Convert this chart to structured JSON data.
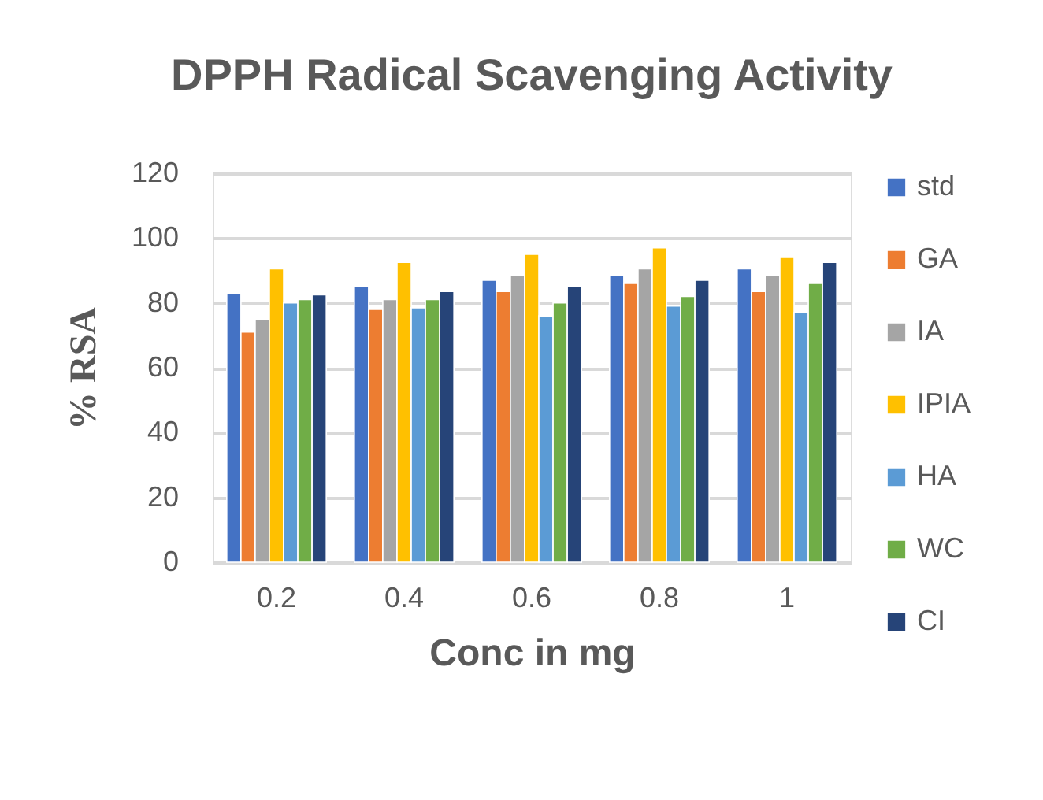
{
  "chart_data": {
    "type": "bar",
    "title": "DPPH Radical Scavenging Activity",
    "xlabel": "Conc in mg",
    "ylabel": "% RSA",
    "categories": [
      "0.2",
      "0.4",
      "0.6",
      "0.8",
      "1"
    ],
    "series": [
      {
        "name": "std",
        "color": "#4472c4",
        "values": [
          83,
          85,
          87,
          88.5,
          90.5
        ]
      },
      {
        "name": "GA",
        "color": "#ed7d31",
        "values": [
          71,
          78,
          83.5,
          86,
          83.5
        ]
      },
      {
        "name": "IA",
        "color": "#a5a5a5",
        "values": [
          75,
          81,
          88.5,
          90.5,
          88.5
        ]
      },
      {
        "name": "IPIA",
        "color": "#ffc000",
        "values": [
          90.5,
          92.5,
          95,
          97,
          94
        ]
      },
      {
        "name": "HA",
        "color": "#5b9bd5",
        "values": [
          80,
          78.5,
          76,
          79,
          77
        ]
      },
      {
        "name": "WC",
        "color": "#70ad47",
        "values": [
          81,
          81,
          80,
          82,
          86
        ]
      },
      {
        "name": "CI",
        "color": "#264478",
        "values": [
          82.5,
          83.5,
          85,
          87,
          92.5
        ]
      }
    ],
    "ylim": [
      0,
      120
    ],
    "yticks": [
      0,
      20,
      40,
      60,
      80,
      100,
      120
    ],
    "grid": "y",
    "legend": "right"
  }
}
